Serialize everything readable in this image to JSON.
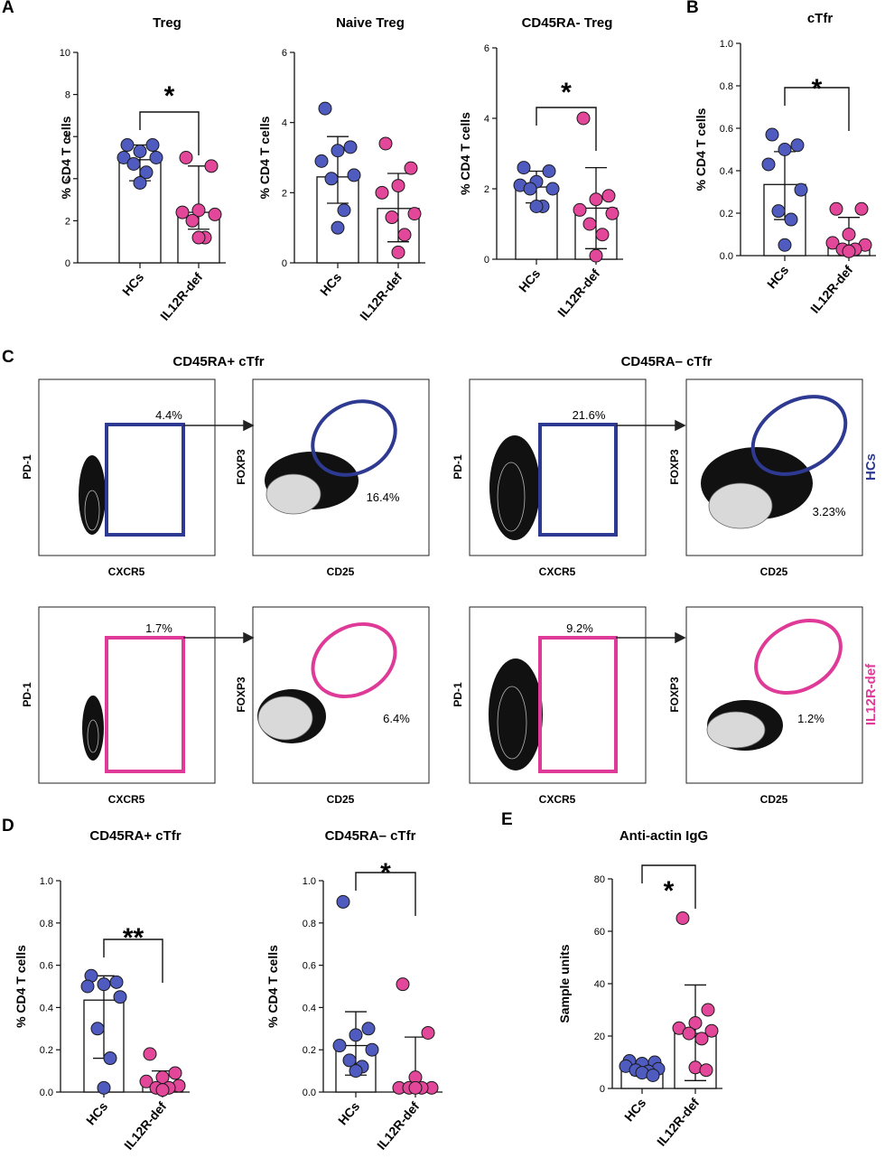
{
  "figure": {
    "panel_labels": [
      "A",
      "B",
      "C",
      "D",
      "E"
    ],
    "colors": {
      "hc": "#4f5bbf",
      "def": "#e2479a",
      "hc_gate": "#2e3a92",
      "def_gate": "#e03a98",
      "dot_stroke": "#1a1a1a"
    },
    "group_labels": [
      "HCs",
      "IL12R-def"
    ]
  },
  "chart_data": [
    {
      "id": "treg",
      "panel": "A",
      "type": "scatter",
      "title": "Treg",
      "ylabel": "% CD4 T cells",
      "ylim": [
        0,
        10
      ],
      "yticks": [
        "0",
        "2",
        "4",
        "6",
        "8",
        "10"
      ],
      "categories": [
        "HCs",
        "IL12R-def"
      ],
      "series": [
        {
          "name": "HCs",
          "values": [
            5.6,
            5.6,
            5.3,
            5.0,
            5.0,
            4.7,
            4.3,
            3.8
          ],
          "mean": 4.9,
          "sd": [
            3.9,
            5.6
          ]
        },
        {
          "name": "IL12R-def",
          "values": [
            5.0,
            4.6,
            2.5,
            2.4,
            2.3,
            2.0,
            1.2,
            1.2
          ],
          "mean": 2.4,
          "sd": [
            1.6,
            4.6
          ]
        }
      ],
      "significance": "*"
    },
    {
      "id": "naive",
      "panel": "A",
      "type": "scatter",
      "title": "Naive Treg",
      "ylabel": "% CD4 T cells",
      "ylim": [
        0,
        6
      ],
      "yticks": [
        "0",
        "2",
        "4",
        "6"
      ],
      "categories": [
        "HCs",
        "IL12R-def"
      ],
      "series": [
        {
          "name": "HCs",
          "values": [
            4.4,
            3.3,
            3.2,
            2.9,
            2.5,
            2.4,
            1.5,
            1.0
          ],
          "mean": 2.45,
          "sd": [
            1.7,
            3.6
          ]
        },
        {
          "name": "IL12R-def",
          "values": [
            3.4,
            2.7,
            2.2,
            2.0,
            1.4,
            1.3,
            0.8,
            0.3
          ],
          "mean": 1.55,
          "sd": [
            0.6,
            2.55
          ]
        }
      ],
      "significance": ""
    },
    {
      "id": "cd45",
      "panel": "A",
      "type": "scatter",
      "title": "CD45RA- Treg",
      "ylabel": "% CD4 T cells",
      "ylim": [
        0,
        6
      ],
      "yticks": [
        "0",
        "2",
        "4",
        "6"
      ],
      "categories": [
        "HCs",
        "IL12R-def"
      ],
      "series": [
        {
          "name": "HCs",
          "values": [
            2.6,
            2.5,
            2.2,
            2.1,
            2.0,
            2.0,
            1.5,
            1.5
          ],
          "mean": 2.05,
          "sd": [
            1.6,
            2.5
          ]
        },
        {
          "name": "IL12R-def",
          "values": [
            4.0,
            1.8,
            1.7,
            1.4,
            1.3,
            1.0,
            0.7,
            0.1
          ],
          "mean": 1.45,
          "sd": [
            0.3,
            2.6
          ]
        }
      ],
      "significance": "*"
    },
    {
      "id": "ctfr",
      "panel": "B",
      "type": "scatter",
      "title": "cTfr",
      "ylabel": "% CD4 T cells",
      "ylim": [
        0,
        1.0
      ],
      "yticks": [
        "0.0",
        "0.2",
        "0.4",
        "0.6",
        "0.8",
        "1.0"
      ],
      "categories": [
        "HCs",
        "IL12R-def"
      ],
      "series": [
        {
          "name": "HCs",
          "values": [
            0.57,
            0.52,
            0.5,
            0.43,
            0.31,
            0.21,
            0.17,
            0.05
          ],
          "mean": 0.335,
          "sd": [
            0.17,
            0.49
          ]
        },
        {
          "name": "IL12R-def",
          "values": [
            0.22,
            0.22,
            0.1,
            0.06,
            0.05,
            0.03,
            0.03,
            0.02
          ],
          "mean": 0.05,
          "sd": [
            0.0,
            0.18
          ]
        }
      ],
      "significance": "*"
    },
    {
      "id": "d1",
      "panel": "D",
      "type": "scatter",
      "title": "CD45RA+ cTfr",
      "ylabel": "% CD4 T cells",
      "ylim": [
        0,
        1.0
      ],
      "yticks": [
        "0.0",
        "0.2",
        "0.4",
        "0.6",
        "0.8",
        "1.0"
      ],
      "categories": [
        "HCs",
        "IL12R-def"
      ],
      "series": [
        {
          "name": "HCs",
          "values": [
            0.55,
            0.52,
            0.51,
            0.5,
            0.45,
            0.3,
            0.16,
            0.02
          ],
          "mean": 0.435,
          "sd": [
            0.16,
            0.55
          ]
        },
        {
          "name": "IL12R-def",
          "values": [
            0.18,
            0.09,
            0.07,
            0.05,
            0.03,
            0.02,
            0.02,
            0.01
          ],
          "mean": 0.035,
          "sd": [
            0.0,
            0.1
          ]
        }
      ],
      "significance": "**"
    },
    {
      "id": "d2",
      "panel": "D",
      "type": "scatter",
      "title": "CD45RA– cTfr",
      "ylabel": "% CD4 T cells",
      "ylim": [
        0,
        1.0
      ],
      "yticks": [
        "0.0",
        "0.2",
        "0.4",
        "0.6",
        "0.8",
        "1.0"
      ],
      "categories": [
        "HCs",
        "IL12R-def"
      ],
      "series": [
        {
          "name": "HCs",
          "values": [
            0.9,
            0.3,
            0.27,
            0.22,
            0.2,
            0.15,
            0.12,
            0.1
          ],
          "mean": 0.22,
          "sd": [
            0.08,
            0.38
          ]
        },
        {
          "name": "IL12R-def",
          "values": [
            0.51,
            0.28,
            0.07,
            0.02,
            0.02,
            0.02,
            0.02,
            0.02
          ],
          "mean": 0.02,
          "sd": [
            0.0,
            0.26
          ]
        }
      ],
      "significance": "*"
    },
    {
      "id": "e",
      "panel": "E",
      "type": "scatter",
      "title": "Anti-actin IgG",
      "ylabel": "Sample units",
      "ylim": [
        0,
        80
      ],
      "yticks": [
        "0",
        "20",
        "40",
        "60",
        "80"
      ],
      "categories": [
        "HCs",
        "IL12R-def"
      ],
      "series": [
        {
          "name": "HCs",
          "values": [
            10.5,
            10.0,
            9.5,
            8.5,
            7.5,
            7.0,
            6.5,
            6.0,
            5.0
          ],
          "mean": 7.5,
          "sd": [
            5.0,
            10.0
          ]
        },
        {
          "name": "IL12R-def",
          "values": [
            65,
            30,
            25,
            23,
            22,
            21,
            19,
            8,
            7
          ],
          "mean": 21,
          "sd": [
            3,
            39.5
          ]
        }
      ],
      "significance": "*"
    }
  ],
  "flow": {
    "group_titles": [
      "CD45RA+ cTfr",
      "CD45RA– cTfr"
    ],
    "row_labels": [
      "HCs",
      "IL12R-def"
    ],
    "left_axis": {
      "x": "CXCR5",
      "y": "PD-1"
    },
    "right_axis": {
      "x": "CD25",
      "y": "FOXP3"
    },
    "gates": {
      "hc_g1_box": "4.4%",
      "hc_g1_oval": "16.4%",
      "hc_g2_box": "21.6%",
      "hc_g2_oval": "3.23%",
      "def_g1_box": "1.7%",
      "def_g1_oval": "6.4%",
      "def_g2_box": "9.2%",
      "def_g2_oval": "1.2%"
    }
  }
}
